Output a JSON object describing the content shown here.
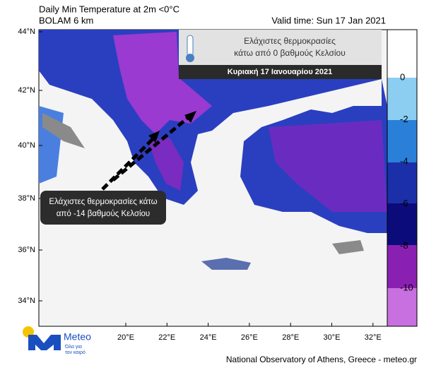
{
  "header": {
    "title": "Daily Min Temperature at 2m <0°C",
    "subtitle": "BOLAM 6 km",
    "valid_time": "Valid time: Sun 17 Jan 2021"
  },
  "map": {
    "lat_labels": [
      "44°N",
      "42°N",
      "40°N",
      "38°N",
      "36°N",
      "34°N"
    ],
    "lon_labels": [
      "20°E",
      "22°E",
      "24°E",
      "26°E",
      "28°E",
      "30°E",
      "32°E"
    ]
  },
  "colorbar": {
    "ticks": [
      0,
      -2,
      -4,
      -6,
      -8,
      -10
    ]
  },
  "overlay": {
    "line1": "Ελάχιστες θερμοκρασίες",
    "line2": "κάτω από 0 βαθμούς Κελσίου",
    "date": "Κυριακή 17 Ιανουαρίου 2021"
  },
  "annotation": {
    "line1": "Ελάχιστες θερμοκρασίες κάτω",
    "line2": "από -14 βαθμούς Κελσίου"
  },
  "logo": {
    "name": "Meteo",
    "tagline1": "Όλα για",
    "tagline2": "τον καιρό"
  },
  "footer": "National Observatory of Athens, Greece - meteo.gr"
}
